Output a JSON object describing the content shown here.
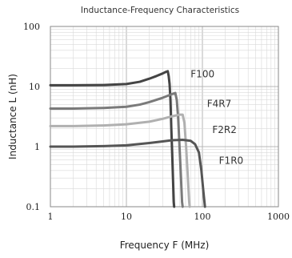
{
  "chart_data": {
    "type": "line",
    "title": "Inductance-Frequency Characteristics",
    "xlabel": "Frequency F (MHz)",
    "ylabel": "Inductance L (nH)",
    "xscale": "log",
    "yscale": "log",
    "xlim": [
      1,
      1000
    ],
    "ylim": [
      0.1,
      100
    ],
    "x_ticks": [
      "1",
      "10",
      "100",
      "1000"
    ],
    "y_ticks": [
      "0.1",
      "1",
      "10",
      "100"
    ],
    "grid": true,
    "legend": "none",
    "series": [
      {
        "name": "F100",
        "color": "#444444",
        "points": [
          [
            1,
            10.5
          ],
          [
            2,
            10.5
          ],
          [
            5,
            10.6
          ],
          [
            10,
            11
          ],
          [
            15,
            12
          ],
          [
            20,
            13.5
          ],
          [
            25,
            15
          ],
          [
            30,
            16.5
          ],
          [
            33,
            17.5
          ],
          [
            35,
            18
          ],
          [
            36,
            15
          ],
          [
            37,
            11
          ],
          [
            38,
            6
          ],
          [
            39,
            2
          ],
          [
            40,
            0.8
          ],
          [
            41,
            0.3
          ],
          [
            42,
            0.12
          ],
          [
            42.5,
            0.1
          ]
        ]
      },
      {
        "name": "F4R7",
        "color": "#7a7a7a",
        "points": [
          [
            1,
            4.3
          ],
          [
            2,
            4.3
          ],
          [
            5,
            4.4
          ],
          [
            10,
            4.6
          ],
          [
            15,
            5
          ],
          [
            20,
            5.5
          ],
          [
            30,
            6.5
          ],
          [
            40,
            7.5
          ],
          [
            44,
            7.8
          ],
          [
            46,
            6
          ],
          [
            48,
            3
          ],
          [
            50,
            1
          ],
          [
            52,
            0.35
          ],
          [
            54,
            0.12
          ],
          [
            55,
            0.1
          ]
        ]
      },
      {
        "name": "F2R2",
        "color": "#b0b0b0",
        "points": [
          [
            1,
            2.2
          ],
          [
            2,
            2.2
          ],
          [
            5,
            2.25
          ],
          [
            10,
            2.35
          ],
          [
            20,
            2.6
          ],
          [
            30,
            2.9
          ],
          [
            40,
            3.2
          ],
          [
            50,
            3.4
          ],
          [
            55,
            3.4
          ],
          [
            58,
            2.5
          ],
          [
            61,
            1
          ],
          [
            64,
            0.35
          ],
          [
            67,
            0.12
          ],
          [
            68,
            0.1
          ]
        ]
      },
      {
        "name": "F1R0",
        "color": "#555555",
        "points": [
          [
            1,
            1.0
          ],
          [
            2,
            1.0
          ],
          [
            5,
            1.02
          ],
          [
            10,
            1.05
          ],
          [
            20,
            1.15
          ],
          [
            30,
            1.22
          ],
          [
            40,
            1.28
          ],
          [
            55,
            1.3
          ],
          [
            70,
            1.25
          ],
          [
            80,
            1.1
          ],
          [
            90,
            0.8
          ],
          [
            97,
            0.4
          ],
          [
            103,
            0.18
          ],
          [
            108,
            0.1
          ]
        ]
      }
    ],
    "annotations": [
      {
        "text": "F100",
        "x": 70,
        "y": 16
      },
      {
        "text": "F4R7",
        "x": 115,
        "y": 5.2
      },
      {
        "text": "F2R2",
        "x": 135,
        "y": 1.9
      },
      {
        "text": "F1R0",
        "x": 165,
        "y": 0.58
      }
    ]
  }
}
